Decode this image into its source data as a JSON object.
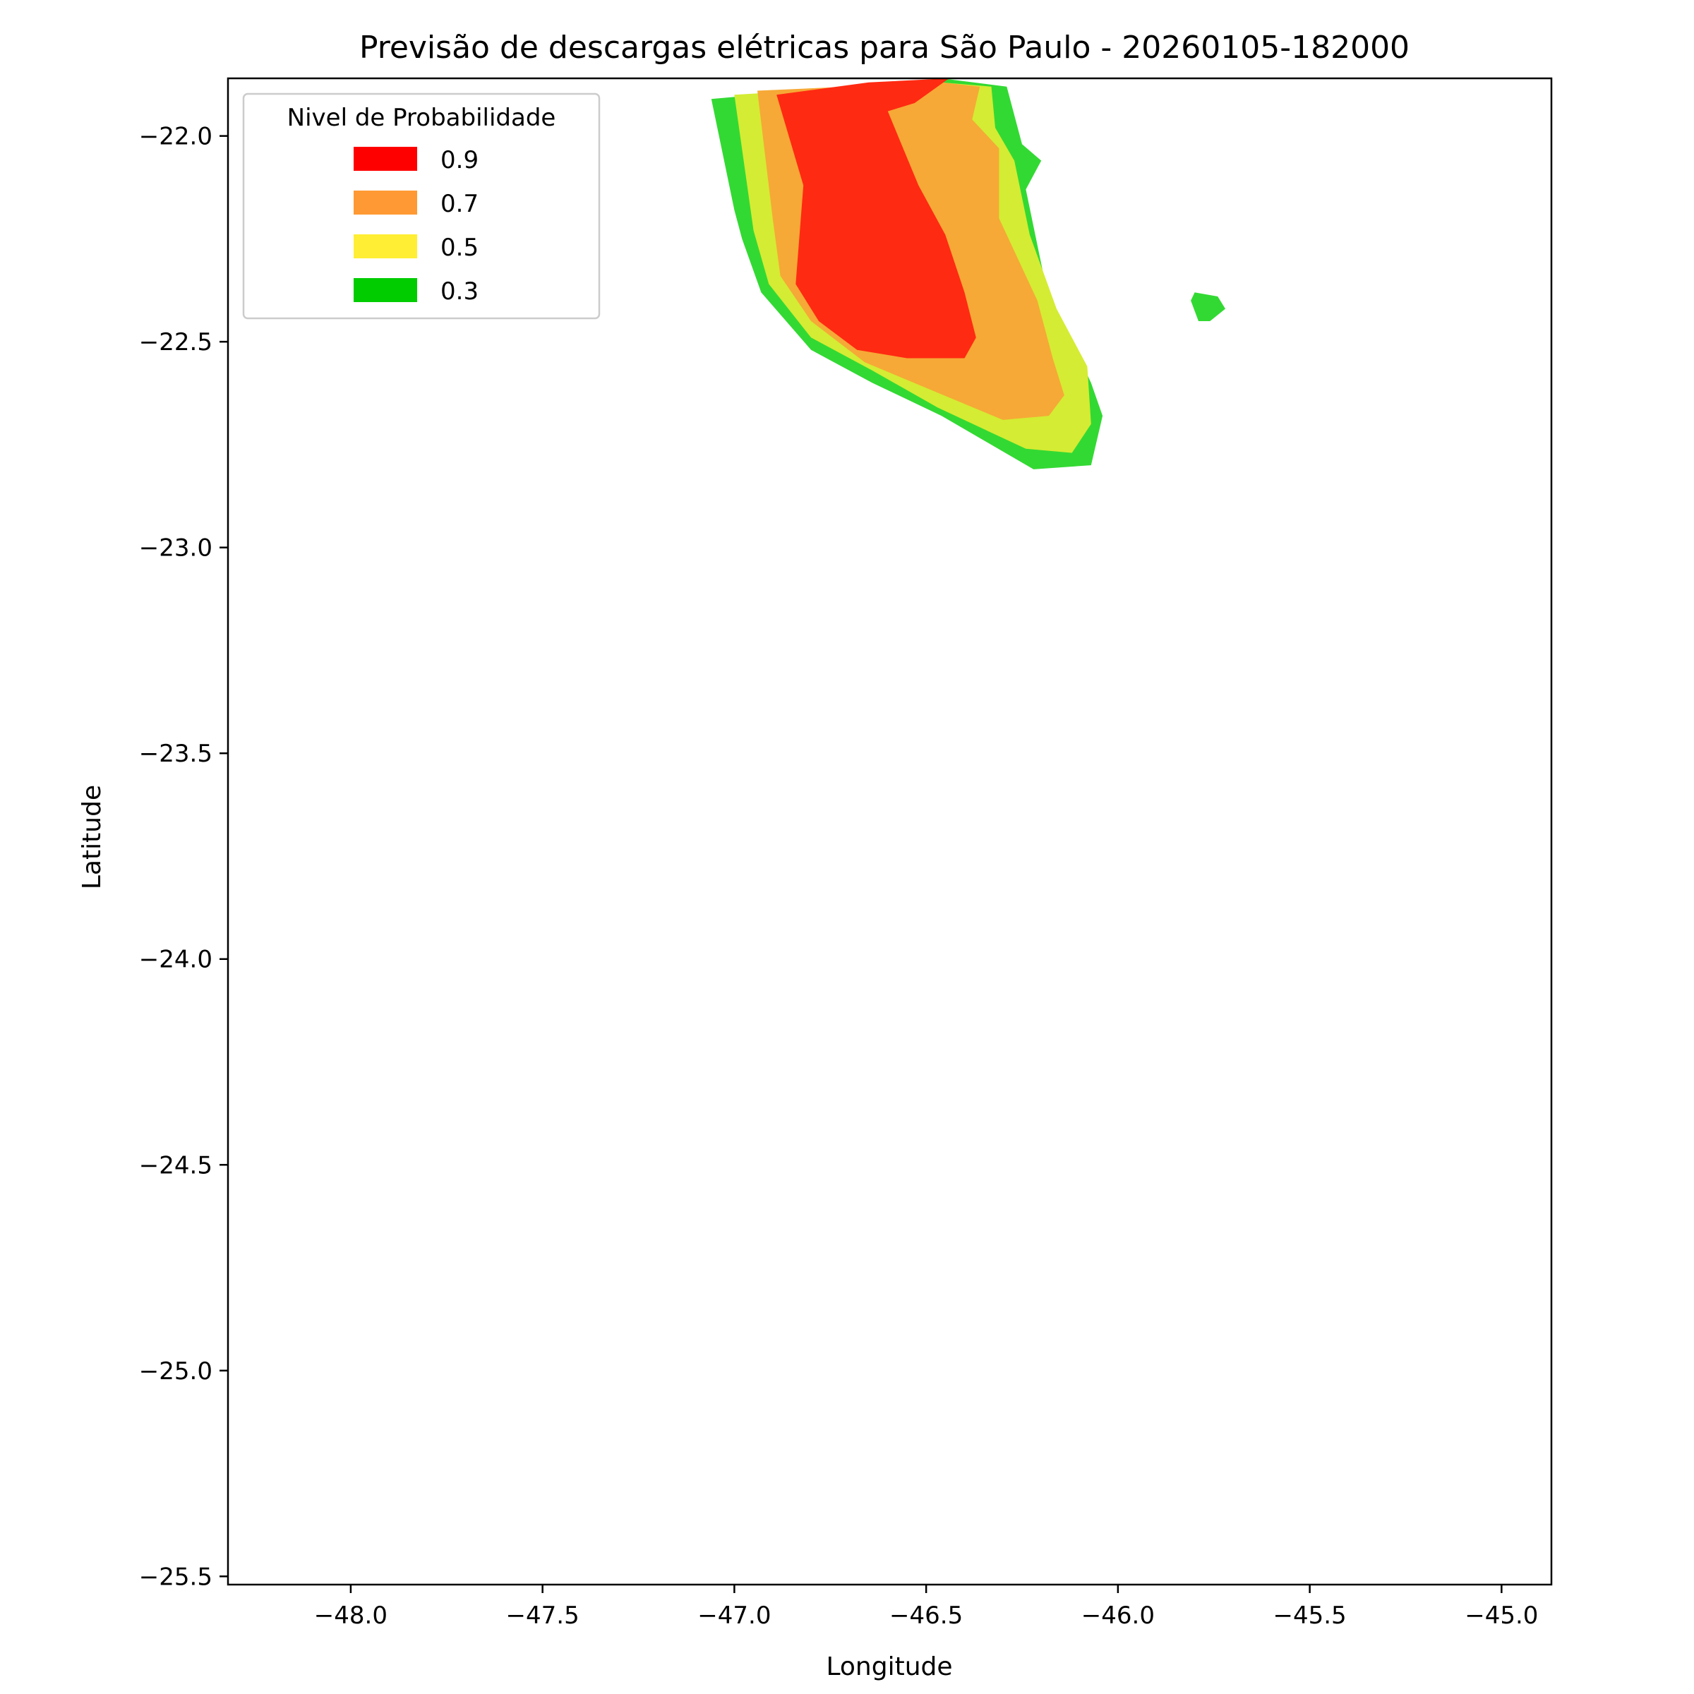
{
  "chart_data": {
    "type": "heatmap",
    "title": "Previsão de descargas elétricas para São Paulo - 20260105-182000",
    "xlabel": "Longitude",
    "ylabel": "Latitude",
    "xlim": [
      -48.32,
      -44.87
    ],
    "ylim": [
      -25.52,
      -21.86
    ],
    "x_ticks": [
      -48.0,
      -47.5,
      -47.0,
      -46.5,
      -46.0,
      -45.5,
      -45.0
    ],
    "x_tick_labels": [
      "−48.0",
      "−47.5",
      "−47.0",
      "−46.5",
      "−46.0",
      "−45.5",
      "−45.0"
    ],
    "y_ticks": [
      -22.0,
      -22.5,
      -23.0,
      -23.5,
      -24.0,
      -24.5,
      -25.0,
      -25.5
    ],
    "y_tick_labels": [
      "−22.0",
      "−22.5",
      "−23.0",
      "−23.5",
      "−24.0",
      "−24.5",
      "−25.0",
      "−25.5"
    ],
    "grid": false,
    "legend": {
      "title": "Nivel de Probabilidade",
      "placement": "upper-left",
      "entries": [
        {
          "label": "0.9",
          "color": "#ff0000"
        },
        {
          "label": "0.7",
          "color": "#ff9933"
        },
        {
          "label": "0.5",
          "color": "#ffee33"
        },
        {
          "label": "0.3",
          "color": "#00cc00"
        }
      ]
    },
    "regions": [
      {
        "level": "0.3",
        "color": "#33d933",
        "polygons": [
          [
            [
              -47.06,
              -21.91
            ],
            [
              -46.46,
              -21.86
            ],
            [
              -46.29,
              -21.88
            ],
            [
              -46.25,
              -22.02
            ],
            [
              -46.2,
              -22.06
            ],
            [
              -46.24,
              -22.13
            ],
            [
              -46.18,
              -22.4
            ],
            [
              -46.11,
              -22.52
            ],
            [
              -46.07,
              -22.6
            ],
            [
              -46.04,
              -22.68
            ],
            [
              -46.07,
              -22.8
            ],
            [
              -46.22,
              -22.81
            ],
            [
              -46.46,
              -22.68
            ],
            [
              -46.64,
              -22.6
            ],
            [
              -46.8,
              -22.52
            ],
            [
              -46.93,
              -22.38
            ],
            [
              -46.98,
              -22.25
            ],
            [
              -47.0,
              -22.18
            ]
          ],
          [
            [
              -45.8,
              -22.38
            ],
            [
              -45.74,
              -22.39
            ],
            [
              -45.72,
              -22.42
            ],
            [
              -45.76,
              -22.45
            ],
            [
              -45.79,
              -22.45
            ],
            [
              -45.81,
              -22.4
            ]
          ]
        ]
      },
      {
        "level": "0.5",
        "color": "#d4ec33",
        "polygons": [
          [
            [
              -47.0,
              -21.9
            ],
            [
              -46.46,
              -21.87
            ],
            [
              -46.33,
              -21.88
            ],
            [
              -46.32,
              -21.98
            ],
            [
              -46.27,
              -22.06
            ],
            [
              -46.23,
              -22.24
            ],
            [
              -46.16,
              -22.42
            ],
            [
              -46.08,
              -22.56
            ],
            [
              -46.07,
              -22.7
            ],
            [
              -46.12,
              -22.77
            ],
            [
              -46.24,
              -22.76
            ],
            [
              -46.47,
              -22.66
            ],
            [
              -46.64,
              -22.57
            ],
            [
              -46.8,
              -22.49
            ],
            [
              -46.91,
              -22.36
            ],
            [
              -46.95,
              -22.23
            ]
          ]
        ]
      },
      {
        "level": "0.7",
        "color": "#f6a936",
        "polygons": [
          [
            [
              -46.94,
              -21.89
            ],
            [
              -46.46,
              -21.87
            ],
            [
              -46.36,
              -21.88
            ],
            [
              -46.38,
              -21.96
            ],
            [
              -46.31,
              -22.03
            ],
            [
              -46.31,
              -22.2
            ],
            [
              -46.21,
              -22.4
            ],
            [
              -46.17,
              -22.54
            ],
            [
              -46.14,
              -22.63
            ],
            [
              -46.18,
              -22.68
            ],
            [
              -46.3,
              -22.69
            ],
            [
              -46.48,
              -22.62
            ],
            [
              -46.66,
              -22.55
            ],
            [
              -46.8,
              -22.45
            ],
            [
              -46.88,
              -22.34
            ],
            [
              -46.9,
              -22.2
            ]
          ]
        ]
      },
      {
        "level": "0.9",
        "color": "#ff2a12",
        "polygons": [
          [
            [
              -46.89,
              -21.9
            ],
            [
              -46.65,
              -21.87
            ],
            [
              -46.44,
              -21.86
            ],
            [
              -46.53,
              -21.92
            ],
            [
              -46.6,
              -21.94
            ],
            [
              -46.56,
              -22.03
            ],
            [
              -46.52,
              -22.12
            ],
            [
              -46.45,
              -22.24
            ],
            [
              -46.4,
              -22.38
            ],
            [
              -46.37,
              -22.49
            ],
            [
              -46.4,
              -22.54
            ],
            [
              -46.55,
              -22.54
            ],
            [
              -46.68,
              -22.52
            ],
            [
              -46.78,
              -22.45
            ],
            [
              -46.84,
              -22.36
            ],
            [
              -46.82,
              -22.12
            ]
          ]
        ]
      }
    ]
  }
}
